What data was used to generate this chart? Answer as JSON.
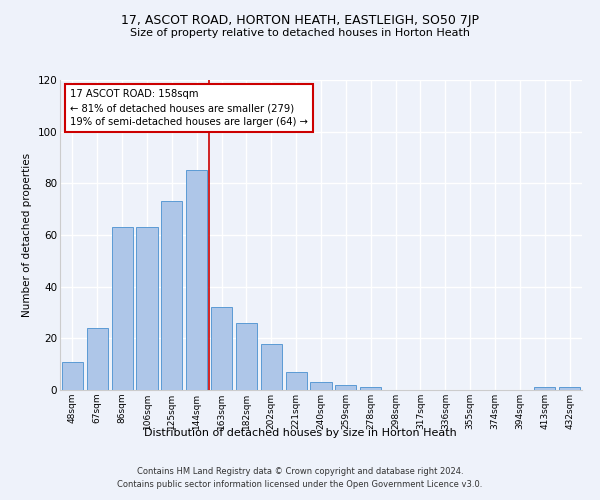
{
  "title": "17, ASCOT ROAD, HORTON HEATH, EASTLEIGH, SO50 7JP",
  "subtitle": "Size of property relative to detached houses in Horton Heath",
  "xlabel": "Distribution of detached houses by size in Horton Heath",
  "ylabel": "Number of detached properties",
  "bar_color": "#aec6e8",
  "bar_edge_color": "#5b9bd5",
  "background_color": "#eef2fa",
  "grid_color": "#ffffff",
  "annotation_box_color": "#cc0000",
  "vline_color": "#cc0000",
  "categories": [
    "48sqm",
    "67sqm",
    "86sqm",
    "106sqm",
    "125sqm",
    "144sqm",
    "163sqm",
    "182sqm",
    "202sqm",
    "221sqm",
    "240sqm",
    "259sqm",
    "278sqm",
    "298sqm",
    "317sqm",
    "336sqm",
    "355sqm",
    "374sqm",
    "394sqm",
    "413sqm",
    "432sqm"
  ],
  "values": [
    11,
    24,
    63,
    63,
    73,
    85,
    32,
    26,
    18,
    7,
    3,
    2,
    1,
    0,
    0,
    0,
    0,
    0,
    0,
    1,
    1
  ],
  "vline_pos": 5.5,
  "annotation_text": "17 ASCOT ROAD: 158sqm\n← 81% of detached houses are smaller (279)\n19% of semi-detached houses are larger (64) →",
  "ylim": [
    0,
    120
  ],
  "yticks": [
    0,
    20,
    40,
    60,
    80,
    100,
    120
  ],
  "footer_line1": "Contains HM Land Registry data © Crown copyright and database right 2024.",
  "footer_line2": "Contains public sector information licensed under the Open Government Licence v3.0."
}
